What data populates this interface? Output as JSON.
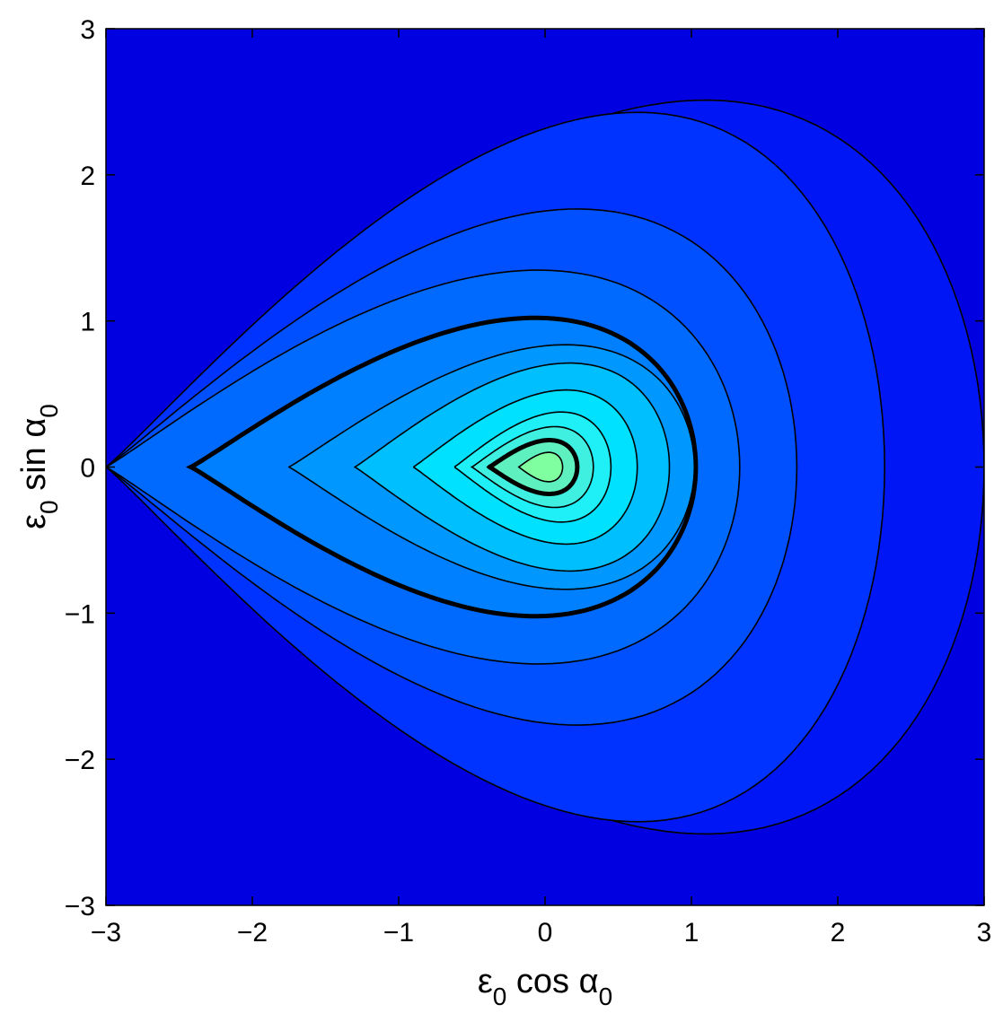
{
  "chart_data": {
    "type": "contour",
    "title": "",
    "xlabel": {
      "base": "ε",
      "sub1": "0",
      "mid": " cos α",
      "sub2": "0"
    },
    "ylabel": {
      "base": "ε",
      "sub1": "0",
      "mid": " sin α",
      "sub2": "0"
    },
    "xlim": [
      -3,
      3
    ],
    "ylim": [
      -3,
      3
    ],
    "xticks": [
      -3,
      -2,
      -1,
      0,
      1,
      2,
      3
    ],
    "yticks": [
      -3,
      -2,
      -1,
      0,
      1,
      2,
      3
    ],
    "xtick_labels": [
      "−3",
      "−2",
      "−1",
      "0",
      "1",
      "2",
      "3"
    ],
    "ytick_labels": [
      "−3",
      "−2",
      "−1",
      "0",
      "1",
      "2",
      "3"
    ],
    "grid": false,
    "legend": "none",
    "contour_levels": [
      {
        "x_range": [
          -0.18,
          0.12
        ],
        "y_extent": 0.12,
        "bold": false,
        "fill": "#7fffa0"
      },
      {
        "x_range": [
          -0.38,
          0.22
        ],
        "y_extent": 0.22,
        "bold": true,
        "fill": "#5ff0c0"
      },
      {
        "x_range": [
          -0.5,
          0.33
        ],
        "y_extent": 0.33,
        "bold": false,
        "fill": "#3ff0e0"
      },
      {
        "x_range": [
          -0.62,
          0.45
        ],
        "y_extent": 0.45,
        "bold": false,
        "fill": "#1ff0f8"
      },
      {
        "x_range": [
          -0.9,
          0.63
        ],
        "y_extent": 0.63,
        "bold": false,
        "fill": "#00e0ff"
      },
      {
        "x_range": [
          -1.3,
          0.85
        ],
        "y_extent": 0.85,
        "bold": false,
        "fill": "#00bfff"
      },
      {
        "x_range": [
          -1.75,
          1.02
        ],
        "y_extent": 1.0,
        "bold": false,
        "fill": "#0098ff"
      },
      {
        "x_range": [
          -2.42,
          1.03
        ],
        "y_extent": 1.22,
        "bold": true,
        "fill": "#0080ff"
      },
      {
        "x_range": [
          -3.0,
          1.33
        ],
        "y_extent": 1.61,
        "bold": false,
        "fill": "#006aff"
      },
      {
        "x_range": [
          -3.0,
          1.72
        ],
        "y_extent": 2.11,
        "bold": false,
        "fill": "#0050ff"
      },
      {
        "x_range": [
          -3.0,
          2.32
        ],
        "y_extent": 2.9,
        "bold": false,
        "fill": "#0033ff"
      },
      {
        "x_range": [
          -3.0,
          3.0
        ],
        "y_extent": 3.0,
        "bold": false,
        "fill": "#0016f5"
      }
    ],
    "colors": {
      "outer": "#0000e0",
      "line": "#000000"
    }
  }
}
